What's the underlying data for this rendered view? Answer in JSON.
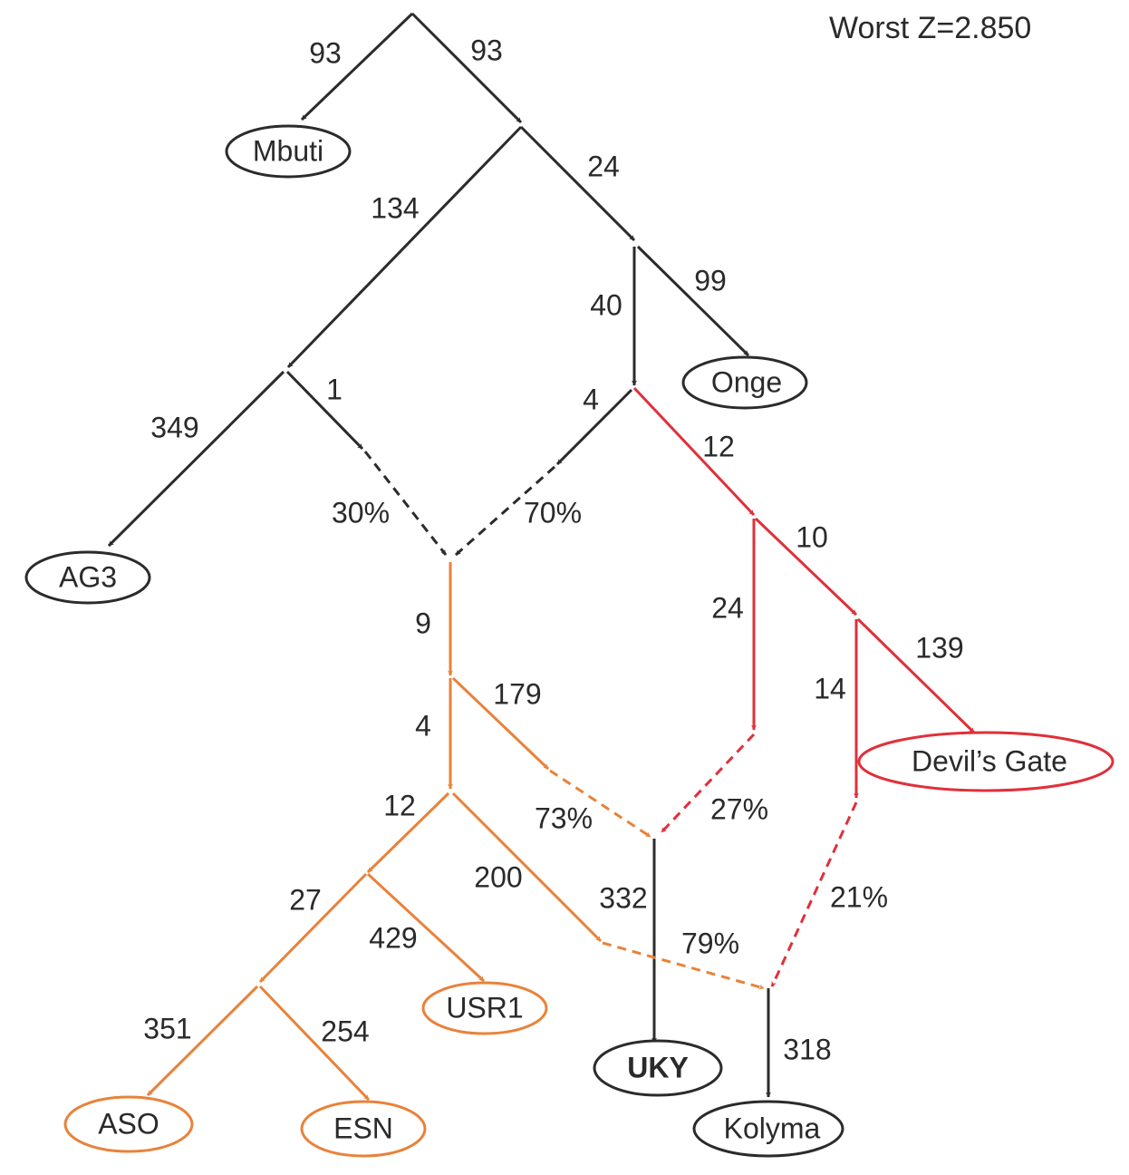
{
  "title": "Worst Z=2.850",
  "colors": {
    "black": "#2b2b2b",
    "orange": "#e8823a",
    "red": "#e0303a"
  },
  "nodes": {
    "mbuti": "Mbuti",
    "onge": "Onge",
    "ag3": "AG3",
    "devils_gate": "Devil’s Gate",
    "usr1": "USR1",
    "aso": "ASO",
    "esn": "ESN",
    "uky": "UKY",
    "kolyma": "Kolyma"
  },
  "edge_labels": {
    "root_mbuti": "93",
    "root_n1": "93",
    "n1_n2": "24",
    "n1_n3": "134",
    "n2_onge": "99",
    "n2_n4": "40",
    "n3_ag3": "349",
    "n3_adm": "1",
    "n4_adm": "4",
    "n4_red1": "12",
    "red1_red2": "10",
    "red1_down": "24",
    "red2_devils": "139",
    "red2_down": "14",
    "adm_o1": "9",
    "o1_o2": "4",
    "o1_uky": "179",
    "o2_o3": "12",
    "o2_kol": "200",
    "o3_o4": "27",
    "o3_usr1": "429",
    "o4_aso": "351",
    "o4_esn": "254",
    "uky_drift": "332",
    "kolyma_drift": "318"
  },
  "admix_labels": {
    "adm_left": "30%",
    "adm_right": "70%",
    "uky_orange": "73%",
    "uky_red": "27%",
    "kol_orange": "79%",
    "kol_red": "21%"
  }
}
